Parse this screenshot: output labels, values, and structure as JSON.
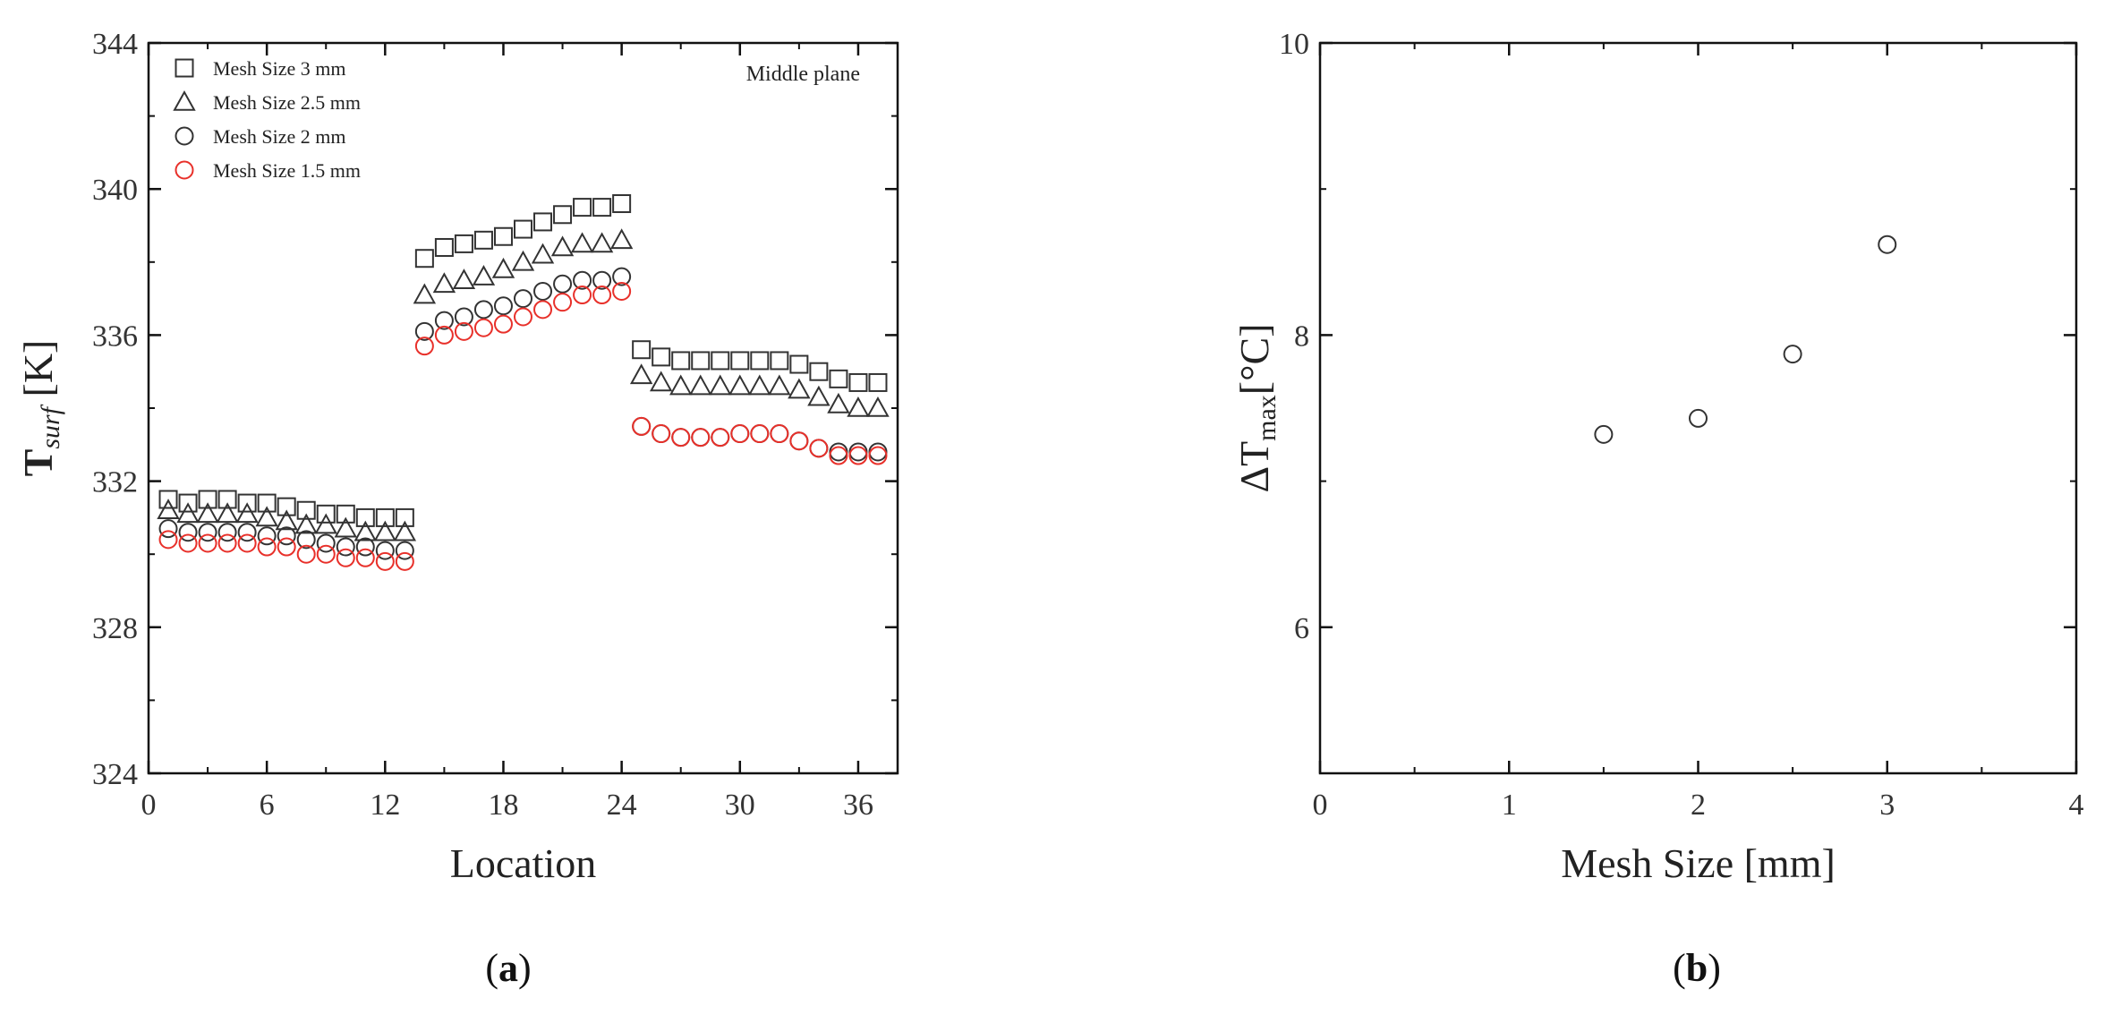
{
  "chart_data": [
    {
      "panel": "a",
      "type": "scatter",
      "caption": "a",
      "xlabel": "Location",
      "ylabel": {
        "main": "T",
        "sub": "surf",
        "unit": " [K]"
      },
      "xlim": [
        0,
        38
      ],
      "ylim": [
        324,
        344
      ],
      "xticks": [
        0,
        6,
        12,
        18,
        24,
        30,
        36
      ],
      "yticks": [
        324,
        328,
        332,
        336,
        340,
        344
      ],
      "annotation": "Middle plane",
      "legend_position": "top-left",
      "series": [
        {
          "name": "Mesh Size  3 mm",
          "marker": "square",
          "color": "#333333",
          "x": [
            1,
            2,
            3,
            4,
            5,
            6,
            7,
            8,
            9,
            10,
            11,
            12,
            13,
            14,
            15,
            16,
            17,
            18,
            19,
            20,
            21,
            22,
            23,
            24,
            25,
            26,
            27,
            28,
            29,
            30,
            31,
            32,
            33,
            34,
            35,
            36,
            37
          ],
          "y": [
            331.5,
            331.4,
            331.5,
            331.5,
            331.4,
            331.4,
            331.3,
            331.2,
            331.1,
            331.1,
            331.0,
            331.0,
            331.0,
            338.1,
            338.4,
            338.5,
            338.6,
            338.7,
            338.9,
            339.1,
            339.3,
            339.5,
            339.5,
            339.6,
            335.6,
            335.4,
            335.3,
            335.3,
            335.3,
            335.3,
            335.3,
            335.3,
            335.2,
            335.0,
            334.8,
            334.7,
            334.7
          ]
        },
        {
          "name": "Mesh Size  2.5 mm",
          "marker": "triangle",
          "color": "#333333",
          "x": [
            1,
            2,
            3,
            4,
            5,
            6,
            7,
            8,
            9,
            10,
            11,
            12,
            13,
            14,
            15,
            16,
            17,
            18,
            19,
            20,
            21,
            22,
            23,
            24,
            25,
            26,
            27,
            28,
            29,
            30,
            31,
            32,
            33,
            34,
            35,
            36,
            37
          ],
          "y": [
            331.2,
            331.1,
            331.1,
            331.1,
            331.1,
            331.0,
            330.9,
            330.8,
            330.8,
            330.7,
            330.6,
            330.6,
            330.6,
            337.1,
            337.4,
            337.5,
            337.6,
            337.8,
            338.0,
            338.2,
            338.4,
            338.5,
            338.5,
            338.6,
            334.9,
            334.7,
            334.6,
            334.6,
            334.6,
            334.6,
            334.6,
            334.6,
            334.5,
            334.3,
            334.1,
            334.0,
            334.0
          ]
        },
        {
          "name": "Mesh Size  2 mm",
          "marker": "circle",
          "color": "#333333",
          "x": [
            1,
            2,
            3,
            4,
            5,
            6,
            7,
            8,
            9,
            10,
            11,
            12,
            13,
            14,
            15,
            16,
            17,
            18,
            19,
            20,
            21,
            22,
            23,
            24,
            25,
            26,
            27,
            28,
            29,
            30,
            31,
            32,
            33,
            34,
            35,
            36,
            37
          ],
          "y": [
            330.7,
            330.6,
            330.6,
            330.6,
            330.6,
            330.5,
            330.5,
            330.4,
            330.3,
            330.2,
            330.2,
            330.1,
            330.1,
            336.1,
            336.4,
            336.5,
            336.7,
            336.8,
            337.0,
            337.2,
            337.4,
            337.5,
            337.5,
            337.6,
            333.5,
            333.3,
            333.2,
            333.2,
            333.2,
            333.3,
            333.3,
            333.3,
            333.1,
            332.9,
            332.8,
            332.8,
            332.8
          ]
        },
        {
          "name": "Mesh Size  1.5 mm",
          "marker": "circle",
          "color": "#e8302a",
          "x": [
            1,
            2,
            3,
            4,
            5,
            6,
            7,
            8,
            9,
            10,
            11,
            12,
            13,
            14,
            15,
            16,
            17,
            18,
            19,
            20,
            21,
            22,
            23,
            24,
            25,
            26,
            27,
            28,
            29,
            30,
            31,
            32,
            33,
            34,
            35,
            36,
            37
          ],
          "y": [
            330.4,
            330.3,
            330.3,
            330.3,
            330.3,
            330.2,
            330.2,
            330.0,
            330.0,
            329.9,
            329.9,
            329.8,
            329.8,
            335.7,
            336.0,
            336.1,
            336.2,
            336.3,
            336.5,
            336.7,
            336.9,
            337.1,
            337.1,
            337.2,
            333.5,
            333.3,
            333.2,
            333.2,
            333.2,
            333.3,
            333.3,
            333.3,
            333.1,
            332.9,
            332.7,
            332.7,
            332.7
          ]
        }
      ]
    },
    {
      "panel": "b",
      "type": "scatter",
      "caption": "b",
      "xlabel": "Mesh Size [mm]",
      "ylabel": {
        "main": "ΔT",
        "sub": "max",
        "unit": "[°C]"
      },
      "xlim": [
        0,
        4
      ],
      "ylim": [
        5,
        10
      ],
      "xticks": [
        0,
        1,
        2,
        3,
        4
      ],
      "yticks": [
        6,
        8,
        10
      ],
      "series": [
        {
          "marker": "circle",
          "color": "#333333",
          "x": [
            1.5,
            2.0,
            2.5,
            3.0
          ],
          "y": [
            7.32,
            7.43,
            7.87,
            8.62
          ]
        }
      ]
    }
  ]
}
